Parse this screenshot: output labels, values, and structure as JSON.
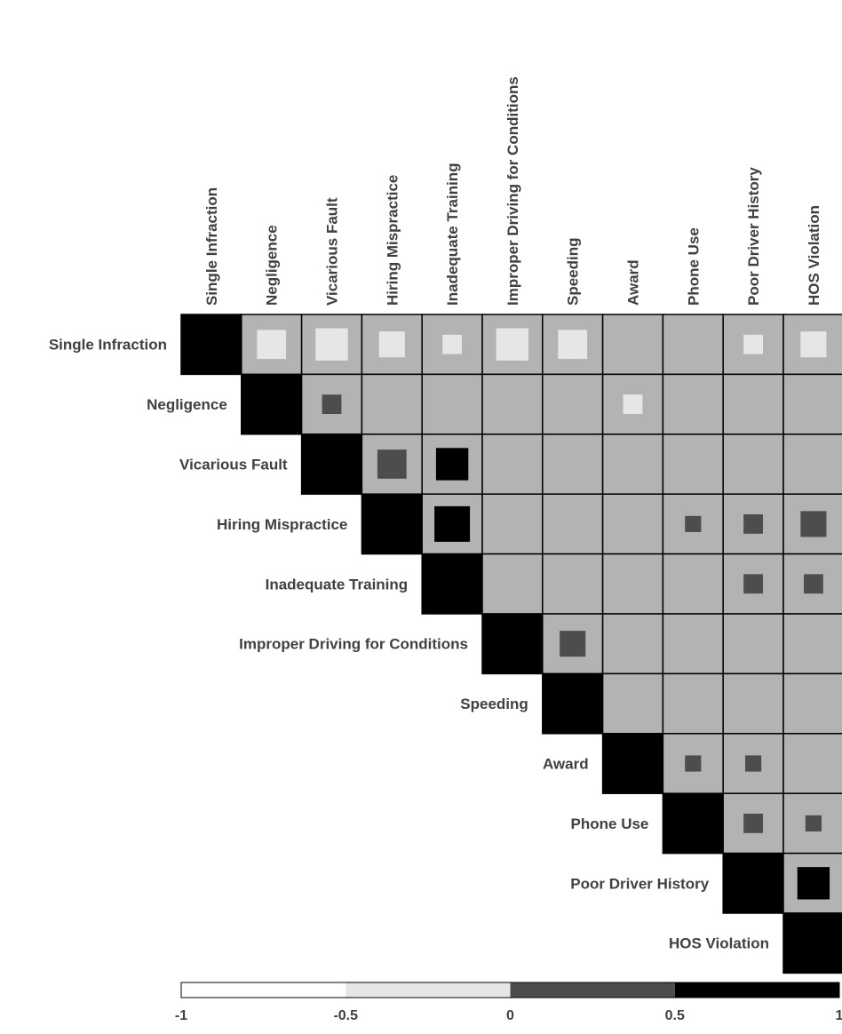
{
  "chart_data": {
    "type": "heatmap",
    "variables": [
      "Single Infraction",
      "Negligence",
      "Vicarious Fault",
      "Hiring Mispractice",
      "Inadequate Training",
      "Improper Driving for Conditions",
      "Speeding",
      "Award",
      "Phone Use",
      "Poor Driver History",
      "HOS Violation"
    ],
    "matrix_shape": "upper-triangle",
    "diagonal_value": 1,
    "cells": [
      {
        "row": "Single Infraction",
        "col": "Negligence",
        "value": -0.45
      },
      {
        "row": "Single Infraction",
        "col": "Vicarious Fault",
        "value": -0.5
      },
      {
        "row": "Single Infraction",
        "col": "Hiring Mispractice",
        "value": -0.4
      },
      {
        "row": "Single Infraction",
        "col": "Inadequate Training",
        "value": -0.3
      },
      {
        "row": "Single Infraction",
        "col": "Improper Driving for Conditions",
        "value": -0.5
      },
      {
        "row": "Single Infraction",
        "col": "Speeding",
        "value": -0.45
      },
      {
        "row": "Single Infraction",
        "col": "Poor Driver History",
        "value": -0.3
      },
      {
        "row": "Single Infraction",
        "col": "HOS Violation",
        "value": -0.4
      },
      {
        "row": "Negligence",
        "col": "Vicarious Fault",
        "value": 0.3
      },
      {
        "row": "Negligence",
        "col": "Award",
        "value": -0.3
      },
      {
        "row": "Vicarious Fault",
        "col": "Hiring Mispractice",
        "value": 0.45
      },
      {
        "row": "Vicarious Fault",
        "col": "Inadequate Training",
        "value": 0.5
      },
      {
        "row": "Hiring Mispractice",
        "col": "Inadequate Training",
        "value": 0.55
      },
      {
        "row": "Hiring Mispractice",
        "col": "Phone Use",
        "value": 0.25
      },
      {
        "row": "Hiring Mispractice",
        "col": "Poor Driver History",
        "value": 0.3
      },
      {
        "row": "Hiring Mispractice",
        "col": "HOS Violation",
        "value": 0.4
      },
      {
        "row": "Inadequate Training",
        "col": "Poor Driver History",
        "value": 0.3
      },
      {
        "row": "Inadequate Training",
        "col": "HOS Violation",
        "value": 0.3
      },
      {
        "row": "Improper Driving for Conditions",
        "col": "Speeding",
        "value": 0.4
      },
      {
        "row": "Award",
        "col": "Phone Use",
        "value": 0.25
      },
      {
        "row": "Award",
        "col": "Poor Driver History",
        "value": 0.25
      },
      {
        "row": "Phone Use",
        "col": "Poor Driver History",
        "value": 0.3
      },
      {
        "row": "Phone Use",
        "col": "HOS Violation",
        "value": 0.25
      },
      {
        "row": "Poor Driver History",
        "col": "HOS Violation",
        "value": 0.5
      }
    ],
    "color_scale": {
      "range": [
        -1,
        1
      ],
      "bins": [
        {
          "from": -1,
          "to": -0.5,
          "color": "#ffffff"
        },
        {
          "from": -0.5,
          "to": 0,
          "color": "#e6e6e6"
        },
        {
          "from": 0,
          "to": 0.5,
          "color": "#4d4d4d"
        },
        {
          "from": 0.5,
          "to": 1,
          "color": "#000000"
        }
      ],
      "ticks": [
        "-1",
        "-0.5",
        "0",
        "0.5",
        "1"
      ]
    },
    "cell_background": "#b3b3b3",
    "grid_line_color": "#000000",
    "legend_placement": "bottom"
  }
}
